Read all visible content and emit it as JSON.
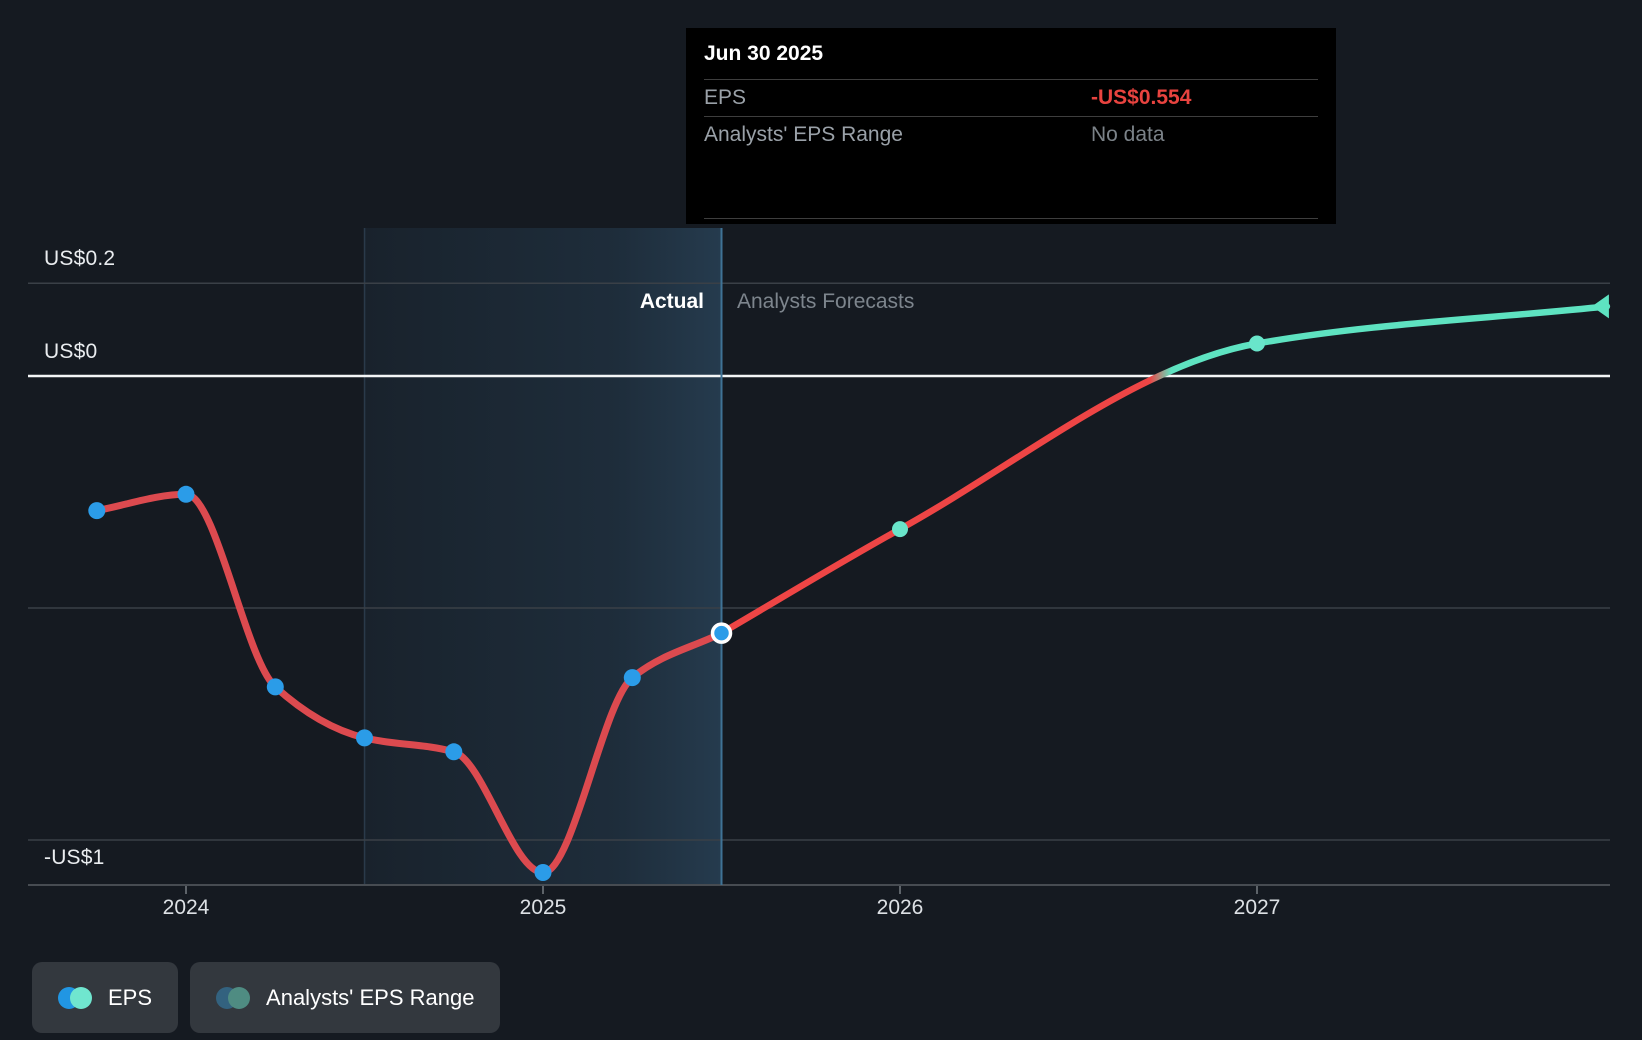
{
  "tooltip": {
    "title": "Jun 30 2025",
    "rows": [
      {
        "label": "EPS",
        "value": "-US$0.554",
        "value_color": "#e8433f"
      },
      {
        "label": "Analysts' EPS Range",
        "value": "No data",
        "value_color": "#7b8288"
      }
    ]
  },
  "divider": {
    "actual_label": "Actual",
    "forecast_label": "Analysts Forecasts"
  },
  "legend": [
    {
      "label": "EPS",
      "dot_colors": [
        "#2196e3",
        "#70e6cf"
      ]
    },
    {
      "label": "Analysts' EPS Range",
      "dot_colors": [
        "#33627f",
        "#4f8c82"
      ]
    }
  ],
  "chart_data": {
    "type": "line",
    "title": "EPS — actual vs analysts forecasts",
    "currency": "US$",
    "xlim": [
      2023.55,
      2028.0
    ],
    "ylim": [
      -1.15,
      0.28
    ],
    "zero_line": 0,
    "gridline_values": [
      0.2,
      -0.5,
      -1
    ],
    "y_ticks": [
      {
        "text": "US$0.2",
        "value": 0.2,
        "side": "above"
      },
      {
        "text": "US$0",
        "value": 0,
        "side": "above"
      },
      {
        "text": "-US$1",
        "value": -1,
        "side": "below"
      }
    ],
    "x_ticks": [
      {
        "label": "2024",
        "x": 2024
      },
      {
        "label": "2025",
        "x": 2025
      },
      {
        "label": "2026",
        "x": 2026
      },
      {
        "label": "2027",
        "x": 2027
      }
    ],
    "highlight_band": {
      "from_x": 2024.5,
      "to_x": 2025.5
    },
    "divider_x": 2025.5,
    "zero_crossing_x": 2026.73,
    "series": [
      {
        "name": "EPS (actual)",
        "line_color": "#dc4a4f",
        "marker_color": "#2b9ce8",
        "points": [
          {
            "date": "Sep 30 2023",
            "x": 2023.75,
            "y": -0.29
          },
          {
            "date": "Dec 31 2023",
            "x": 2024.0,
            "y": -0.255
          },
          {
            "date": "Mar 31 2024",
            "x": 2024.25,
            "y": -0.67
          },
          {
            "date": "Jun 30 2024",
            "x": 2024.5,
            "y": -0.78
          },
          {
            "date": "Sep 30 2024",
            "x": 2024.75,
            "y": -0.81
          },
          {
            "date": "Dec 31 2024",
            "x": 2025.0,
            "y": -1.07
          },
          {
            "date": "Mar 31 2025",
            "x": 2025.25,
            "y": -0.65
          },
          {
            "date": "Jun 30 2025",
            "x": 2025.5,
            "y": -0.554,
            "highlighted": true
          }
        ]
      },
      {
        "name": "EPS (analysts forecast)",
        "line_color_negative": "#ee4545",
        "line_color_positive": "#5ee3c1",
        "marker_color": "#69e5ca",
        "points": [
          {
            "date": "Jun 30 2025",
            "x": 2025.5,
            "y": -0.554
          },
          {
            "date": "Dec 31 2025",
            "x": 2026.0,
            "y": -0.33
          },
          {
            "date": "Dec 31 2026",
            "x": 2027.0,
            "y": 0.07
          },
          {
            "date": "Dec 31 2027",
            "x": 2027.98,
            "y": 0.15,
            "end_arrow": true
          }
        ]
      }
    ]
  }
}
